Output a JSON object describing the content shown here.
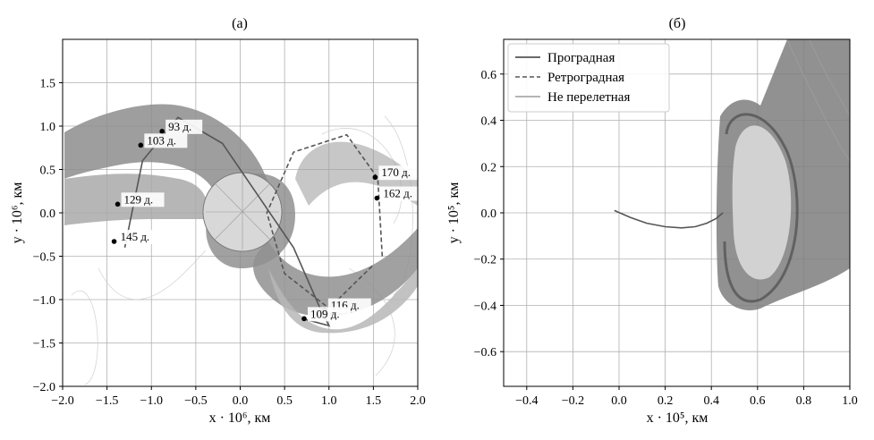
{
  "panel_a": {
    "title": "(а)",
    "xlabel": "x · 10⁶, км",
    "ylabel": "y · 10⁶, км"
  },
  "panel_b": {
    "title": "(б)",
    "xlabel": "x · 10⁵, км",
    "ylabel": "y · 10⁵, км"
  },
  "legend": [
    "Проградная",
    "Ретроградная",
    "Не перелетная"
  ],
  "chart_data": [
    {
      "type": "line",
      "title": "(а)",
      "xlabel": "x · 10⁶, км",
      "ylabel": "y · 10⁶, км",
      "xlim": [
        -2.0,
        2.0
      ],
      "ylim": [
        -2.0,
        2.0
      ],
      "xticks": [
        "−2.0",
        "−1.5",
        "−1.0",
        "−0.5",
        "0.0",
        "0.5",
        "1.0",
        "1.5",
        "2.0"
      ],
      "yticks": [
        "−2.0",
        "−1.5",
        "−1.0",
        "−0.5",
        "0.0",
        "0.5",
        "1.0",
        "1.5"
      ],
      "xtick_values": [
        -2.0,
        -1.5,
        -1.0,
        -0.5,
        0.0,
        0.5,
        1.0,
        1.5,
        2.0
      ],
      "ytick_values": [
        -2.0,
        -1.5,
        -1.0,
        -0.5,
        0.0,
        0.5,
        1.0,
        1.5
      ],
      "grid": true,
      "annotations": [
        {
          "label": "93 д.",
          "x": -0.88,
          "y": 0.94
        },
        {
          "label": "103 д.",
          "x": -1.12,
          "y": 0.78
        },
        {
          "label": "129 д.",
          "x": -1.38,
          "y": 0.1
        },
        {
          "label": "145 д.",
          "x": -1.42,
          "y": -0.33
        },
        {
          "label": "170 д.",
          "x": 1.52,
          "y": 0.41
        },
        {
          "label": "162 д.",
          "x": 1.54,
          "y": 0.17
        },
        {
          "label": "116 д.",
          "x": 0.95,
          "y": -1.12
        },
        {
          "label": "109 д.",
          "x": 0.72,
          "y": -1.22
        }
      ],
      "series": [
        {
          "name": "Проградная",
          "style": "solid",
          "color": "#555555",
          "x": [
            -1.3,
            -1.1,
            -0.7,
            -0.2,
            0.2,
            0.6,
            0.9,
            1.0,
            0.7
          ],
          "y": [
            -0.4,
            0.6,
            1.1,
            0.8,
            0.2,
            -0.4,
            -1.1,
            -1.3,
            -1.22
          ]
        },
        {
          "name": "Ретроградная",
          "style": "dashed",
          "color": "#555555",
          "x": [
            1.6,
            1.55,
            1.2,
            0.6,
            0.3,
            0.5,
            1.0,
            1.5
          ],
          "y": [
            -0.5,
            0.4,
            0.9,
            0.7,
            0.0,
            -0.7,
            -1.1,
            -0.6
          ]
        }
      ]
    },
    {
      "type": "line",
      "title": "(б)",
      "xlabel": "x · 10⁵, км",
      "ylabel": "y · 10⁵, км",
      "xlim": [
        -0.5,
        1.0
      ],
      "ylim": [
        -0.75,
        0.75
      ],
      "xticks": [
        "−0.4",
        "−0.2",
        "0.0",
        "0.2",
        "0.4",
        "0.6",
        "0.8",
        "1.0"
      ],
      "yticks": [
        "−0.6",
        "−0.4",
        "−0.2",
        "0.0",
        "0.2",
        "0.4",
        "0.6"
      ],
      "xtick_values": [
        -0.4,
        -0.2,
        0.0,
        0.2,
        0.4,
        0.6,
        0.8,
        1.0
      ],
      "ytick_values": [
        -0.6,
        -0.4,
        -0.2,
        0.0,
        0.2,
        0.4,
        0.6
      ],
      "grid": true,
      "legend_position": "top-left",
      "series": [
        {
          "name": "Проградная",
          "style": "solid",
          "color": "#555555",
          "x": [
            -0.02,
            0.05,
            0.12,
            0.2,
            0.27,
            0.33,
            0.38,
            0.42,
            0.45
          ],
          "y": [
            0.01,
            -0.02,
            -0.045,
            -0.06,
            -0.065,
            -0.06,
            -0.045,
            -0.025,
            0.0
          ]
        }
      ]
    }
  ]
}
